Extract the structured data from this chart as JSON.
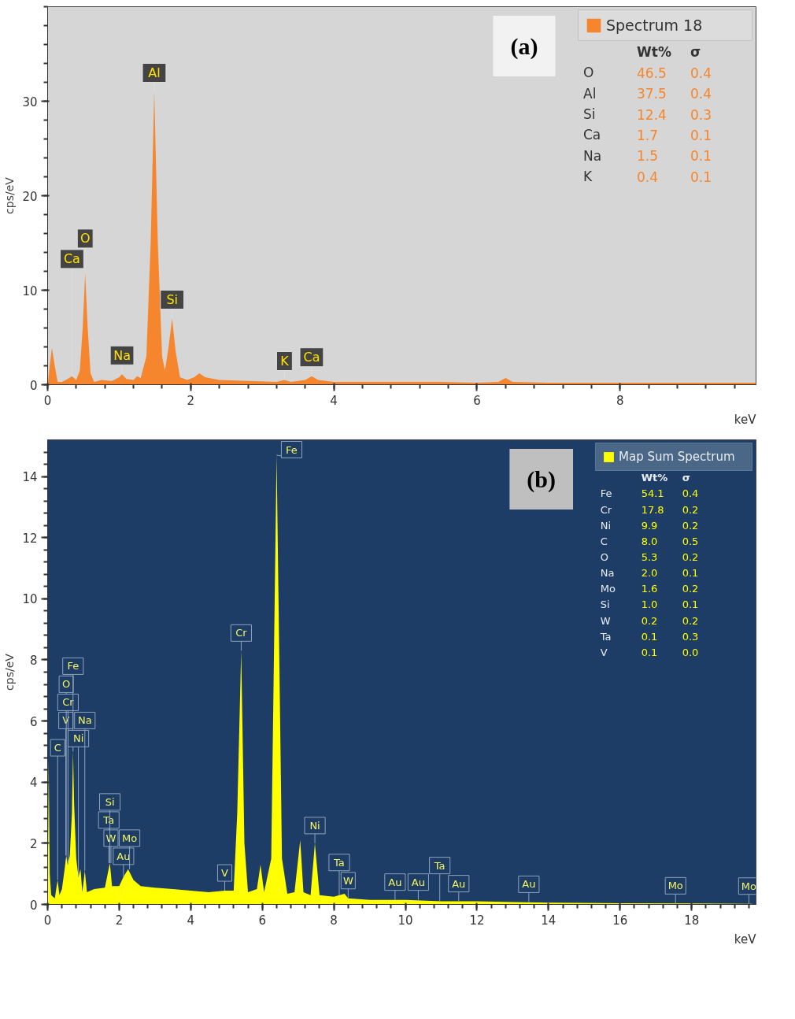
{
  "chart_data": [
    {
      "type": "area",
      "xlabel": "keV",
      "ylabel": "cps/eV",
      "xlim": [
        0,
        9.9
      ],
      "ylim": [
        0,
        40
      ],
      "xticks": [
        0,
        2,
        4,
        6,
        8
      ],
      "yticks": [
        0,
        10,
        20,
        30
      ],
      "grid": false,
      "legend": "top right",
      "series": [
        {
          "name": "Spectrum 18",
          "color": "#f5862e",
          "x": [
            0,
            0.03,
            0.06,
            0.1,
            0.14,
            0.2,
            0.28,
            0.34,
            0.4,
            0.45,
            0.49,
            0.525,
            0.56,
            0.6,
            0.65,
            0.75,
            0.9,
            1.0,
            1.04,
            1.1,
            1.2,
            1.25,
            1.3,
            1.38,
            1.44,
            1.49,
            1.54,
            1.6,
            1.64,
            1.69,
            1.74,
            1.79,
            1.85,
            1.95,
            2.05,
            2.12,
            2.2,
            2.4,
            2.8,
            3.2,
            3.31,
            3.4,
            3.6,
            3.69,
            3.78,
            4.0,
            4.5,
            5.0,
            5.5,
            6.0,
            6.3,
            6.4,
            6.5,
            7.0,
            8.0,
            9.0,
            9.9
          ],
          "values": [
            0,
            2,
            3.9,
            2,
            0.3,
            0.3,
            0.6,
            0.9,
            0.5,
            1.5,
            6,
            11.8,
            6,
            1.2,
            0.3,
            0.5,
            0.4,
            0.8,
            1.1,
            0.6,
            0.5,
            0.9,
            0.7,
            3,
            15,
            31,
            15,
            3,
            1.5,
            4,
            7,
            3.5,
            0.8,
            0.5,
            0.8,
            1.2,
            0.8,
            0.5,
            0.4,
            0.3,
            0.5,
            0.3,
            0.5,
            0.9,
            0.5,
            0.3,
            0.3,
            0.3,
            0.3,
            0.2,
            0.3,
            0.7,
            0.3,
            0.2,
            0.2,
            0.2,
            0.2
          ]
        }
      ],
      "annotations": [
        "(a)",
        "Wt% σ",
        "O 46.5 0.4",
        "Al 37.5 0.4",
        "Si 12.4 0.3",
        "Ca 1.7 0.1",
        "Na 1.5 0.1",
        "K 0.4 0.1",
        {
          "text": "Ca",
          "x": 0.34,
          "y": 0.9
        },
        {
          "text": "O",
          "x": 0.525,
          "y": 11.8
        },
        {
          "text": "Na",
          "x": 1.04,
          "y": 1.1
        },
        {
          "text": "Al",
          "x": 1.49,
          "y": 31
        },
        {
          "text": "Si",
          "x": 1.74,
          "y": 7
        },
        {
          "text": "K",
          "x": 3.31,
          "y": 0.5
        },
        {
          "text": "Ca",
          "x": 3.69,
          "y": 0.9
        }
      ]
    },
    {
      "type": "area",
      "xlabel": "keV",
      "ylabel": "cps/eV",
      "xlim": [
        0,
        19.8
      ],
      "ylim": [
        0,
        15.2
      ],
      "xticks": [
        0,
        2,
        4,
        6,
        8,
        10,
        12,
        14,
        16,
        18
      ],
      "yticks": [
        0,
        2,
        4,
        6,
        8,
        10,
        12,
        14
      ],
      "grid": false,
      "legend": "top right",
      "series": [
        {
          "name": "Map Sum Spectrum",
          "color": "#ffff00",
          "x": [
            0,
            0.03,
            0.06,
            0.1,
            0.2,
            0.28,
            0.33,
            0.4,
            0.48,
            0.52,
            0.56,
            0.62,
            0.68,
            0.71,
            0.74,
            0.8,
            0.86,
            0.92,
            0.97,
            1.04,
            1.1,
            1.3,
            1.6,
            1.74,
            1.8,
            2.0,
            2.12,
            2.25,
            2.4,
            2.6,
            3.0,
            3.5,
            4.0,
            4.5,
            4.95,
            5.2,
            5.3,
            5.41,
            5.5,
            5.6,
            5.85,
            5.95,
            6.05,
            6.25,
            6.4,
            6.55,
            6.7,
            6.9,
            7.06,
            7.15,
            7.35,
            7.47,
            7.6,
            8.0,
            8.15,
            8.3,
            8.4,
            9.0,
            9.7,
            10,
            11,
            12,
            13,
            14,
            16,
            18,
            19.7
          ],
          "values": [
            0,
            4.7,
            1,
            0.3,
            0.2,
            0.8,
            0.3,
            0.5,
            1.2,
            1.6,
            1.3,
            1.6,
            3,
            5.0,
            3.3,
            1.5,
            0.9,
            1.15,
            0.4,
            1.1,
            0.4,
            0.5,
            0.55,
            1.35,
            0.6,
            0.6,
            0.9,
            1.15,
            0.8,
            0.6,
            0.55,
            0.5,
            0.45,
            0.4,
            0.45,
            0.45,
            3,
            8.3,
            2,
            0.4,
            0.5,
            1.3,
            0.4,
            1.5,
            14.7,
            1.5,
            0.35,
            0.4,
            2.1,
            0.4,
            0.3,
            2.0,
            0.3,
            0.25,
            0.3,
            0.35,
            0.2,
            0.15,
            0.15,
            0.15,
            0.1,
            0.1,
            0.08,
            0.06,
            0.04,
            0.03,
            0.02
          ]
        }
      ],
      "annotations": [
        "(b)",
        "Wt% σ",
        "Fe 54.1 0.4",
        "Cr 17.8 0.2",
        "Ni 9.9 0.2",
        "C 8.0 0.5",
        "O 5.3 0.2",
        "Na 2.0 0.1",
        "Mo 1.6 0.2",
        "Si 1.0 0.1",
        "W 0.2 0.2",
        "Ta 0.1 0.3",
        "V 0.1 0.0",
        {
          "text": "C",
          "x": 0.28,
          "y": 0.8
        },
        {
          "text": "V",
          "x": 0.51,
          "y": 1.6
        },
        {
          "text": "O",
          "x": 0.52,
          "y": 1.6
        },
        {
          "text": "Cr",
          "x": 0.57,
          "y": 1.3
        },
        {
          "text": "Fe",
          "x": 0.71,
          "y": 5.0
        },
        {
          "text": "Ni",
          "x": 0.86,
          "y": 0.9
        },
        {
          "text": "Na",
          "x": 1.04,
          "y": 1.1
        },
        {
          "text": "Ta",
          "x": 1.71,
          "y": 1.35
        },
        {
          "text": "W",
          "x": 1.77,
          "y": 1.35
        },
        {
          "text": "Si",
          "x": 1.74,
          "y": 1.35
        },
        {
          "text": "Au",
          "x": 2.12,
          "y": 0.9
        },
        {
          "text": "Mo",
          "x": 2.29,
          "y": 1.15
        },
        {
          "text": "V",
          "x": 4.95,
          "y": 0.45
        },
        {
          "text": "Cr",
          "x": 5.41,
          "y": 8.3
        },
        {
          "text": "Fe",
          "x": 6.4,
          "y": 14.7
        },
        {
          "text": "Ni",
          "x": 7.47,
          "y": 2.0
        },
        {
          "text": "Ta",
          "x": 8.15,
          "y": 0.3
        },
        {
          "text": "W",
          "x": 8.4,
          "y": 0.2
        },
        {
          "text": "Au",
          "x": 9.71,
          "y": 0.15
        },
        {
          "text": "Au",
          "x": 10.36,
          "y": 0.15
        },
        {
          "text": "Ta",
          "x": 10.96,
          "y": 0.12
        },
        {
          "text": "Au",
          "x": 11.49,
          "y": 0.1
        },
        {
          "text": "Au",
          "x": 13.45,
          "y": 0.08
        },
        {
          "text": "Mo",
          "x": 17.55,
          "y": 0.03
        },
        {
          "text": "Mo",
          "x": 19.6,
          "y": 0.02
        }
      ]
    }
  ]
}
